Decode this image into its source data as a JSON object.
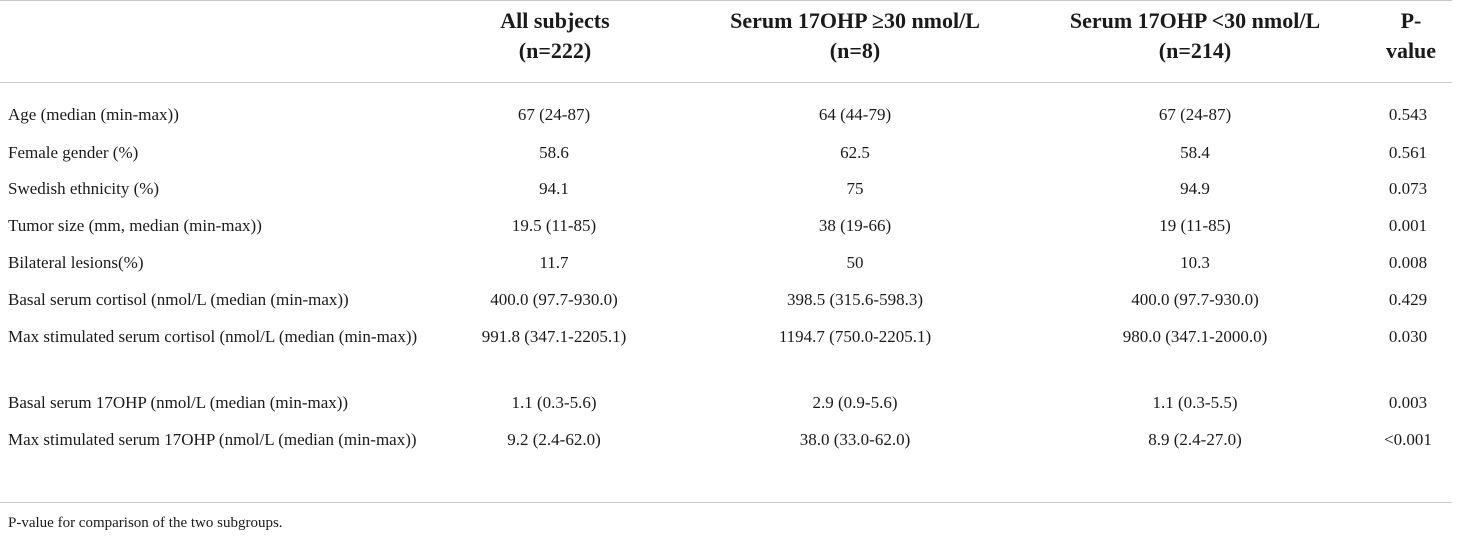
{
  "table": {
    "headers": {
      "all": [
        "All subjects",
        "(n=222)"
      ],
      "hi": [
        "Serum 17OHP ≥30 nmol/L",
        "(n=8)"
      ],
      "lo": [
        "Serum 17OHP <30 nmol/L",
        "(n=214)"
      ],
      "p": [
        "P-",
        "value"
      ]
    },
    "rows": [
      {
        "label": "Age (median (min-max))",
        "all": "67 (24-87)",
        "hi": "64 (44-79)",
        "lo": "67 (24-87)",
        "p": "0.543"
      },
      {
        "label": "Female gender (%)",
        "all": "58.6",
        "hi": "62.5",
        "lo": "58.4",
        "p": "0.561"
      },
      {
        "label": "Swedish ethnicity (%)",
        "all": "94.1",
        "hi": "75",
        "lo": "94.9",
        "p": "0.073"
      },
      {
        "label": "Tumor size (mm, median (min-max))",
        "all": "19.5 (11-85)",
        "hi": "38 (19-66)",
        "lo": "19 (11-85)",
        "p": "0.001"
      },
      {
        "label": "Bilateral lesions(%)",
        "all": "11.7",
        "hi": "50",
        "lo": "10.3",
        "p": "0.008"
      },
      {
        "label": "Basal serum cortisol (nmol/L (median (min-max))",
        "all": "400.0 (97.7-930.0)",
        "hi": "398.5 (315.6-598.3)",
        "lo": "400.0 (97.7-930.0)",
        "p": "0.429"
      },
      {
        "label": "Max stimulated serum cortisol (nmol/L (median (min-max))",
        "all": "991.8 (347.1-2205.1)",
        "hi": "1194.7 (750.0-2205.1)",
        "lo": "980.0 (347.1-2000.0)",
        "p": "0.030"
      },
      {
        "label": "Basal serum 17OHP (nmol/L (median (min-max))",
        "all": "1.1 (0.3-5.6)",
        "hi": "2.9 (0.9-5.6)",
        "lo": "1.1 (0.3-5.5)",
        "p": "0.003"
      },
      {
        "label": "Max stimulated serum 17OHP (nmol/L (median (min-max))",
        "all": "9.2 (2.4-62.0)",
        "hi": "38.0 (33.0-62.0)",
        "lo": "8.9 (2.4-27.0)",
        "p": "<0.001"
      }
    ]
  },
  "footnote": "P-value for comparison of the two subgroups."
}
